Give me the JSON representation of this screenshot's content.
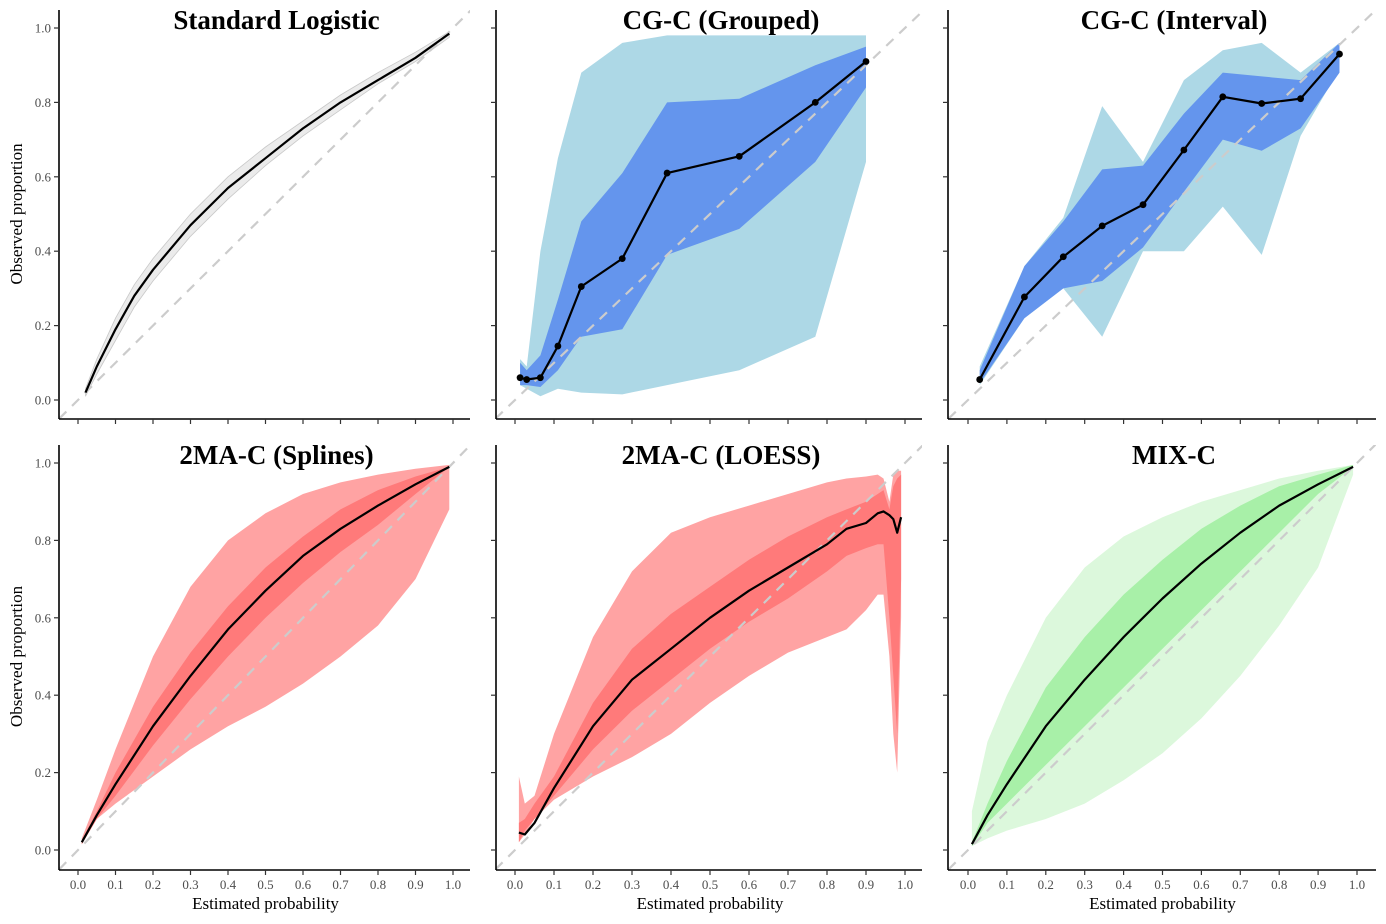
{
  "figure": {
    "ylabel": "Observed proportion",
    "xlabel": "Estimated probability",
    "x_ticks": [
      "0.0",
      "0.1",
      "0.2",
      "0.3",
      "0.4",
      "0.5",
      "0.6",
      "0.7",
      "0.8",
      "0.9",
      "1.0"
    ],
    "y_ticks": [
      "0.0",
      "0.2",
      "0.4",
      "0.6",
      "0.8",
      "1.0"
    ]
  },
  "colors": {
    "grey_band": "#ebebeb",
    "grey_line": "#a6a6a6",
    "blue_outer": "#add8e6",
    "blue_inner": "#6495ed",
    "red_outer": "#ffa3a3",
    "red_inner": "#ff7a7a",
    "green_outer": "#dcf8dc",
    "green_inner": "#a8f0a8",
    "reference_line": "#cccccc",
    "line": "#000000"
  },
  "chart_data": [
    {
      "id": "standard-logistic",
      "type": "area",
      "title": "Standard Logistic",
      "xlabel": "",
      "ylabel": "Observed proportion",
      "xlim": [
        0,
        1
      ],
      "ylim": [
        0,
        1
      ],
      "reference_line": "y = x (dashed)",
      "style": "grey",
      "x": [
        0.02,
        0.05,
        0.1,
        0.15,
        0.2,
        0.3,
        0.4,
        0.5,
        0.6,
        0.7,
        0.8,
        0.9,
        0.99
      ],
      "y": [
        0.02,
        0.09,
        0.19,
        0.28,
        0.35,
        0.47,
        0.57,
        0.65,
        0.73,
        0.8,
        0.86,
        0.92,
        0.985
      ],
      "bands": [
        {
          "name": "95% band",
          "lower": [
            0.01,
            0.07,
            0.16,
            0.25,
            0.32,
            0.44,
            0.54,
            0.63,
            0.71,
            0.78,
            0.85,
            0.91,
            0.975
          ],
          "upper": [
            0.03,
            0.11,
            0.22,
            0.31,
            0.38,
            0.5,
            0.6,
            0.68,
            0.75,
            0.82,
            0.88,
            0.935,
            0.99
          ]
        }
      ]
    },
    {
      "id": "cg-c-grouped",
      "type": "line",
      "title": "CG-C (Grouped)",
      "xlim": [
        0,
        1
      ],
      "ylim": [
        0,
        1
      ],
      "reference_line": "y = x (dashed)",
      "style": "blue",
      "markers": true,
      "x": [
        0.013,
        0.03,
        0.065,
        0.11,
        0.17,
        0.275,
        0.39,
        0.575,
        0.77,
        0.9
      ],
      "y": [
        0.06,
        0.055,
        0.06,
        0.145,
        0.305,
        0.38,
        0.61,
        0.655,
        0.8,
        0.91
      ],
      "bands": [
        {
          "name": "outer",
          "lower": [
            0.04,
            0.03,
            0.01,
            0.03,
            0.02,
            0.015,
            0.04,
            0.08,
            0.17,
            0.64
          ],
          "upper": [
            0.11,
            0.09,
            0.4,
            0.65,
            0.88,
            0.96,
            0.98,
            0.98,
            0.98,
            0.98
          ]
        },
        {
          "name": "inner",
          "lower": [
            0.04,
            0.04,
            0.035,
            0.08,
            0.17,
            0.19,
            0.39,
            0.46,
            0.64,
            0.84
          ],
          "upper": [
            0.1,
            0.08,
            0.12,
            0.27,
            0.48,
            0.61,
            0.8,
            0.81,
            0.9,
            0.95
          ]
        }
      ]
    },
    {
      "id": "cg-c-interval",
      "type": "line",
      "title": "CG-C (Interval)",
      "xlim": [
        0,
        1
      ],
      "ylim": [
        0,
        1
      ],
      "reference_line": "y = x (dashed)",
      "style": "blue",
      "markers": true,
      "x": [
        0.03,
        0.145,
        0.245,
        0.345,
        0.45,
        0.555,
        0.655,
        0.755,
        0.855,
        0.955
      ],
      "y": [
        0.055,
        0.277,
        0.385,
        0.468,
        0.525,
        0.672,
        0.815,
        0.797,
        0.81,
        0.93
      ],
      "bands": [
        {
          "name": "outer",
          "lower": [
            0.04,
            0.22,
            0.3,
            0.17,
            0.4,
            0.4,
            0.52,
            0.39,
            0.71,
            0.89
          ],
          "upper": [
            0.09,
            0.36,
            0.49,
            0.79,
            0.64,
            0.86,
            0.94,
            0.96,
            0.88,
            0.96
          ]
        },
        {
          "name": "inner",
          "lower": [
            0.045,
            0.22,
            0.3,
            0.32,
            0.41,
            0.56,
            0.7,
            0.67,
            0.73,
            0.88
          ],
          "upper": [
            0.08,
            0.36,
            0.48,
            0.62,
            0.63,
            0.77,
            0.88,
            0.87,
            0.86,
            0.96
          ]
        }
      ]
    },
    {
      "id": "2ma-c-splines",
      "type": "area",
      "title": "2MA-C (Splines)",
      "xlim": [
        0,
        1
      ],
      "ylim": [
        0,
        1
      ],
      "reference_line": "y = x (dashed)",
      "style": "red",
      "x": [
        0.01,
        0.05,
        0.1,
        0.2,
        0.3,
        0.4,
        0.5,
        0.6,
        0.7,
        0.8,
        0.9,
        0.99
      ],
      "y": [
        0.02,
        0.09,
        0.17,
        0.32,
        0.45,
        0.57,
        0.67,
        0.76,
        0.83,
        0.89,
        0.945,
        0.99
      ],
      "bands": [
        {
          "name": "outer",
          "lower": [
            0.015,
            0.08,
            0.12,
            0.19,
            0.26,
            0.32,
            0.37,
            0.43,
            0.5,
            0.58,
            0.7,
            0.88
          ],
          "upper": [
            0.03,
            0.13,
            0.26,
            0.5,
            0.68,
            0.8,
            0.87,
            0.92,
            0.95,
            0.97,
            0.985,
            0.995
          ]
        },
        {
          "name": "inner",
          "lower": [
            0.015,
            0.08,
            0.14,
            0.27,
            0.39,
            0.5,
            0.6,
            0.69,
            0.77,
            0.84,
            0.92,
            0.99
          ],
          "upper": [
            0.025,
            0.1,
            0.2,
            0.37,
            0.51,
            0.63,
            0.73,
            0.81,
            0.88,
            0.93,
            0.965,
            0.99
          ]
        }
      ]
    },
    {
      "id": "2ma-c-loess",
      "type": "area",
      "title": "2MA-C (LOESS)",
      "xlim": [
        0,
        1
      ],
      "ylim": [
        0,
        1
      ],
      "reference_line": "y = x (dashed)",
      "style": "red",
      "x": [
        0.01,
        0.025,
        0.05,
        0.1,
        0.2,
        0.3,
        0.4,
        0.5,
        0.6,
        0.7,
        0.8,
        0.85,
        0.9,
        0.93,
        0.945,
        0.96,
        0.97,
        0.98,
        0.99
      ],
      "y": [
        0.045,
        0.04,
        0.07,
        0.16,
        0.32,
        0.44,
        0.52,
        0.6,
        0.67,
        0.73,
        0.79,
        0.83,
        0.845,
        0.87,
        0.875,
        0.865,
        0.855,
        0.82,
        0.86
      ],
      "bands": [
        {
          "name": "outer",
          "lower": [
            0.02,
            0.04,
            0.08,
            0.13,
            0.19,
            0.24,
            0.3,
            0.38,
            0.45,
            0.51,
            0.55,
            0.57,
            0.62,
            0.66,
            0.66,
            0.5,
            0.3,
            0.2,
            0.6
          ],
          "upper": [
            0.19,
            0.12,
            0.14,
            0.3,
            0.55,
            0.72,
            0.82,
            0.86,
            0.89,
            0.92,
            0.95,
            0.96,
            0.965,
            0.97,
            0.96,
            0.9,
            0.97,
            0.98,
            0.98
          ]
        },
        {
          "name": "inner",
          "lower": [
            0.02,
            0.05,
            0.08,
            0.14,
            0.26,
            0.36,
            0.44,
            0.52,
            0.59,
            0.65,
            0.72,
            0.76,
            0.78,
            0.79,
            0.79,
            0.6,
            0.45,
            0.3,
            0.7
          ],
          "upper": [
            0.07,
            0.08,
            0.12,
            0.19,
            0.38,
            0.52,
            0.61,
            0.68,
            0.75,
            0.81,
            0.86,
            0.88,
            0.9,
            0.92,
            0.93,
            0.88,
            0.94,
            0.96,
            0.97
          ]
        }
      ]
    },
    {
      "id": "mix-c",
      "type": "area",
      "title": "MIX-C",
      "xlim": [
        0,
        1
      ],
      "ylim": [
        0,
        1
      ],
      "reference_line": "y = x (dashed)",
      "style": "green",
      "x": [
        0.01,
        0.05,
        0.1,
        0.2,
        0.3,
        0.4,
        0.5,
        0.6,
        0.7,
        0.8,
        0.9,
        0.99
      ],
      "y": [
        0.015,
        0.09,
        0.17,
        0.32,
        0.44,
        0.55,
        0.65,
        0.74,
        0.82,
        0.89,
        0.945,
        0.99
      ],
      "bands": [
        {
          "name": "outer",
          "lower": [
            0.01,
            0.03,
            0.05,
            0.08,
            0.12,
            0.18,
            0.25,
            0.34,
            0.45,
            0.58,
            0.73,
            0.97
          ],
          "upper": [
            0.1,
            0.28,
            0.4,
            0.6,
            0.73,
            0.81,
            0.86,
            0.9,
            0.93,
            0.96,
            0.98,
            0.995
          ]
        },
        {
          "name": "inner",
          "lower": [
            0.01,
            0.07,
            0.12,
            0.22,
            0.32,
            0.42,
            0.52,
            0.62,
            0.72,
            0.82,
            0.92,
            0.99
          ],
          "upper": [
            0.02,
            0.12,
            0.23,
            0.42,
            0.55,
            0.66,
            0.75,
            0.83,
            0.89,
            0.94,
            0.97,
            0.995
          ]
        }
      ]
    }
  ]
}
